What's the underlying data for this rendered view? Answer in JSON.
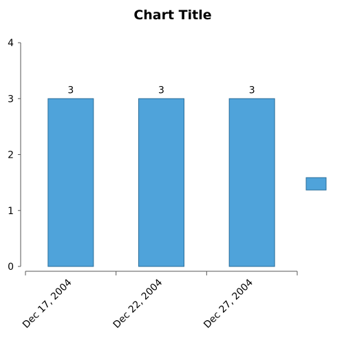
{
  "chart_data": {
    "type": "bar",
    "title": "Chart Title",
    "categories": [
      "Dec 17, 2004",
      "Dec 22, 2004",
      "Dec 27, 2004"
    ],
    "series": [
      {
        "values": [
          3,
          3,
          3
        ],
        "color": "#4FA3DA",
        "data_labels": [
          "3",
          "3",
          "3"
        ]
      }
    ],
    "yticks": [
      "0",
      "1",
      "2",
      "3",
      "4"
    ],
    "ylim": [
      0,
      4
    ],
    "xlabel": "",
    "ylabel": "",
    "grid": false,
    "legend": {
      "position": "right",
      "color": "#4FA3DA"
    }
  }
}
